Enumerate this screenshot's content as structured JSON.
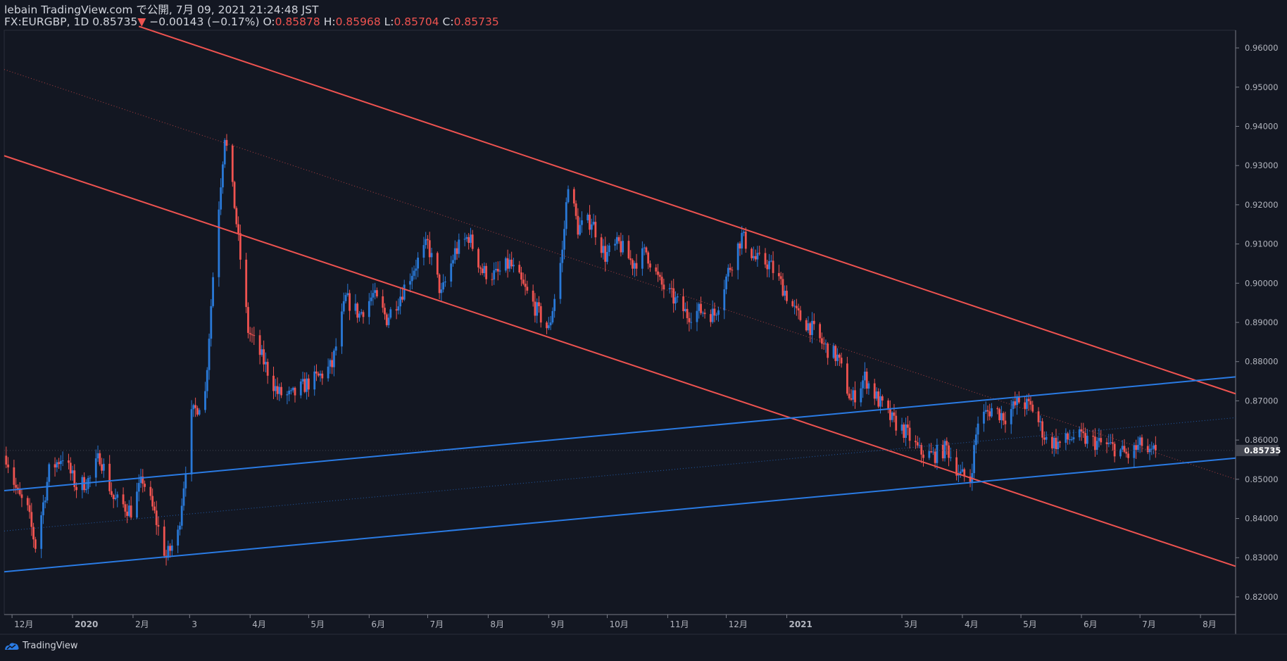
{
  "header": {
    "line1": "lebain TradingView.com で公開, 7月 09, 2021 21:24:48 JST",
    "symbol": "FX:EURGBP, 1D",
    "last": "0.85735",
    "arrow": "▼",
    "change": "−0.00143 (−0.17%)",
    "o_label": "O:",
    "o": "0.85878",
    "h_label": "H:",
    "h": "0.85968",
    "l_label": "L:",
    "l": "0.85704",
    "c_label": "C:",
    "c": "0.85735"
  },
  "footer": {
    "brand": "TradingView"
  },
  "colors": {
    "background": "#131722",
    "up": "#2962ff",
    "up_body": "#2979d8",
    "down": "#ef5350",
    "grid": "#1e222d",
    "axis_text": "#b2b5be",
    "resistance_line": "#ef5350",
    "support_line": "#2a7be4"
  },
  "chart_data": {
    "type": "candlestick",
    "symbol": "FX:EURGBP",
    "interval": "1D",
    "ylim": [
      0.8155,
      0.9645
    ],
    "y_ticks": [
      "0.96000",
      "0.95000",
      "0.94000",
      "0.93000",
      "0.92000",
      "0.91000",
      "0.90000",
      "0.89000",
      "0.88000",
      "0.87000",
      "0.86000",
      "0.85000",
      "0.84000",
      "0.83000",
      "0.82000"
    ],
    "last_price_label": "0.85735",
    "last_price": 0.85735,
    "x_ticks": [
      {
        "label": "12月",
        "date": "2019-12-01"
      },
      {
        "label": "2020",
        "date": "2020-01-01"
      },
      {
        "label": "2月",
        "date": "2020-02-01"
      },
      {
        "label": "3",
        "date": "2020-03-01"
      },
      {
        "label": "4月",
        "date": "2020-04-01"
      },
      {
        "label": "5月",
        "date": "2020-05-01"
      },
      {
        "label": "6月",
        "date": "2020-06-01"
      },
      {
        "label": "7月",
        "date": "2020-07-01"
      },
      {
        "label": "8月",
        "date": "2020-08-01"
      },
      {
        "label": "9月",
        "date": "2020-09-01"
      },
      {
        "label": "10月",
        "date": "2020-10-01"
      },
      {
        "label": "11月",
        "date": "2020-11-01"
      },
      {
        "label": "12月",
        "date": "2020-12-01"
      },
      {
        "label": "2021",
        "date": "2021-01-01"
      },
      {
        "label": "3月",
        "date": "2021-03-01"
      },
      {
        "label": "4月",
        "date": "2021-04-01"
      },
      {
        "label": "5月",
        "date": "2021-05-01"
      },
      {
        "label": "6月",
        "date": "2021-06-01"
      },
      {
        "label": "7月",
        "date": "2021-07-01"
      },
      {
        "label": "8月",
        "date": "2021-08-01"
      }
    ],
    "anchors": [
      {
        "date": "2019-11-28",
        "close": 0.856
      },
      {
        "date": "2019-12-04",
        "close": 0.846
      },
      {
        "date": "2019-12-09",
        "close": 0.842
      },
      {
        "date": "2019-12-13",
        "close": 0.833
      },
      {
        "date": "2019-12-20",
        "close": 0.852
      },
      {
        "date": "2019-12-27",
        "close": 0.856
      },
      {
        "date": "2020-01-03",
        "close": 0.848
      },
      {
        "date": "2020-01-10",
        "close": 0.85
      },
      {
        "date": "2020-01-15",
        "close": 0.856
      },
      {
        "date": "2020-01-22",
        "close": 0.845
      },
      {
        "date": "2020-01-31",
        "close": 0.842
      },
      {
        "date": "2020-02-06",
        "close": 0.85
      },
      {
        "date": "2020-02-12",
        "close": 0.841
      },
      {
        "date": "2020-02-18",
        "close": 0.83
      },
      {
        "date": "2020-02-24",
        "close": 0.836
      },
      {
        "date": "2020-03-02",
        "close": 0.866
      },
      {
        "date": "2020-03-09",
        "close": 0.872
      },
      {
        "date": "2020-03-13",
        "close": 0.902
      },
      {
        "date": "2020-03-19",
        "close": 0.938
      },
      {
        "date": "2020-03-24",
        "close": 0.92
      },
      {
        "date": "2020-03-31",
        "close": 0.888
      },
      {
        "date": "2020-04-08",
        "close": 0.88
      },
      {
        "date": "2020-04-15",
        "close": 0.872
      },
      {
        "date": "2020-04-22",
        "close": 0.871
      },
      {
        "date": "2020-04-29",
        "close": 0.874
      },
      {
        "date": "2020-05-06",
        "close": 0.876
      },
      {
        "date": "2020-05-13",
        "close": 0.879
      },
      {
        "date": "2020-05-20",
        "close": 0.896
      },
      {
        "date": "2020-05-27",
        "close": 0.892
      },
      {
        "date": "2020-06-03",
        "close": 0.897
      },
      {
        "date": "2020-06-10",
        "close": 0.891
      },
      {
        "date": "2020-06-17",
        "close": 0.897
      },
      {
        "date": "2020-06-24",
        "close": 0.904
      },
      {
        "date": "2020-07-01",
        "close": 0.91
      },
      {
        "date": "2020-07-08",
        "close": 0.897
      },
      {
        "date": "2020-07-15",
        "close": 0.908
      },
      {
        "date": "2020-07-22",
        "close": 0.912
      },
      {
        "date": "2020-07-29",
        "close": 0.903
      },
      {
        "date": "2020-08-05",
        "close": 0.902
      },
      {
        "date": "2020-08-12",
        "close": 0.905
      },
      {
        "date": "2020-08-19",
        "close": 0.899
      },
      {
        "date": "2020-08-26",
        "close": 0.893
      },
      {
        "date": "2020-09-01",
        "close": 0.888
      },
      {
        "date": "2020-09-08",
        "close": 0.908
      },
      {
        "date": "2020-09-11",
        "close": 0.926
      },
      {
        "date": "2020-09-16",
        "close": 0.914
      },
      {
        "date": "2020-09-23",
        "close": 0.916
      },
      {
        "date": "2020-09-30",
        "close": 0.907
      },
      {
        "date": "2020-10-07",
        "close": 0.91
      },
      {
        "date": "2020-10-14",
        "close": 0.905
      },
      {
        "date": "2020-10-21",
        "close": 0.908
      },
      {
        "date": "2020-10-28",
        "close": 0.9
      },
      {
        "date": "2020-11-04",
        "close": 0.896
      },
      {
        "date": "2020-11-11",
        "close": 0.892
      },
      {
        "date": "2020-11-18",
        "close": 0.893
      },
      {
        "date": "2020-11-25",
        "close": 0.892
      },
      {
        "date": "2020-12-02",
        "close": 0.903
      },
      {
        "date": "2020-12-09",
        "close": 0.912
      },
      {
        "date": "2020-12-16",
        "close": 0.906
      },
      {
        "date": "2020-12-23",
        "close": 0.905
      },
      {
        "date": "2020-12-30",
        "close": 0.899
      },
      {
        "date": "2021-01-06",
        "close": 0.892
      },
      {
        "date": "2021-01-13",
        "close": 0.889
      },
      {
        "date": "2021-01-20",
        "close": 0.884
      },
      {
        "date": "2021-01-27",
        "close": 0.881
      },
      {
        "date": "2021-02-03",
        "close": 0.87
      },
      {
        "date": "2021-02-10",
        "close": 0.876
      },
      {
        "date": "2021-02-17",
        "close": 0.87
      },
      {
        "date": "2021-02-24",
        "close": 0.865
      },
      {
        "date": "2021-03-03",
        "close": 0.862
      },
      {
        "date": "2021-03-10",
        "close": 0.857
      },
      {
        "date": "2021-03-17",
        "close": 0.856
      },
      {
        "date": "2021-03-24",
        "close": 0.858
      },
      {
        "date": "2021-03-31",
        "close": 0.851
      },
      {
        "date": "2021-04-05",
        "close": 0.85
      },
      {
        "date": "2021-04-09",
        "close": 0.865
      },
      {
        "date": "2021-04-16",
        "close": 0.868
      },
      {
        "date": "2021-04-23",
        "close": 0.866
      },
      {
        "date": "2021-04-30",
        "close": 0.87
      },
      {
        "date": "2021-05-07",
        "close": 0.868
      },
      {
        "date": "2021-05-14",
        "close": 0.86
      },
      {
        "date": "2021-05-21",
        "close": 0.859
      },
      {
        "date": "2021-05-28",
        "close": 0.861
      },
      {
        "date": "2021-06-04",
        "close": 0.86
      },
      {
        "date": "2021-06-11",
        "close": 0.859
      },
      {
        "date": "2021-06-18",
        "close": 0.858
      },
      {
        "date": "2021-06-25",
        "close": 0.856
      },
      {
        "date": "2021-07-02",
        "close": 0.859
      },
      {
        "date": "2021-07-06",
        "close": 0.856
      },
      {
        "date": "2021-07-09",
        "close": 0.85735
      }
    ],
    "trendlines": [
      {
        "name": "channel-top",
        "color": "#ef5350",
        "from": {
          "date": "2020-02-04",
          "price": 0.9655
        },
        "to": {
          "date": "2021-08-19",
          "price": 0.8718
        }
      },
      {
        "name": "channel-bottom",
        "color": "#ef5350",
        "from": {
          "date": "2019-11-27",
          "price": 0.9325
        },
        "to": {
          "date": "2021-08-19",
          "price": 0.8278
        }
      },
      {
        "name": "channel-mid",
        "color": "#ef5350",
        "dotted": true,
        "from": {
          "date": "2019-11-27",
          "price": 0.9545
        },
        "to": {
          "date": "2021-08-19",
          "price": 0.85
        }
      },
      {
        "name": "support-top",
        "color": "#2a7be4",
        "from": {
          "date": "2019-11-27",
          "price": 0.8471
        },
        "to": {
          "date": "2021-08-19",
          "price": 0.8761
        }
      },
      {
        "name": "support-bottom",
        "color": "#2a7be4",
        "from": {
          "date": "2019-11-27",
          "price": 0.8264
        },
        "to": {
          "date": "2021-08-19",
          "price": 0.8554
        }
      },
      {
        "name": "support-mid",
        "color": "#2a7be4",
        "dotted": true,
        "from": {
          "date": "2019-11-27",
          "price": 0.8368
        },
        "to": {
          "date": "2021-08-19",
          "price": 0.8657
        }
      }
    ]
  }
}
